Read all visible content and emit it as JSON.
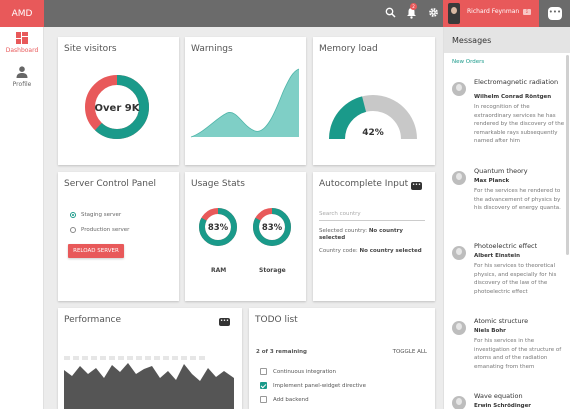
{
  "app": {
    "brand": "AMD"
  },
  "topbar": {
    "notification_count": "2",
    "user": {
      "name": "Richard Feynman",
      "badge": "Σ"
    },
    "icons": [
      "search-icon",
      "bell-icon",
      "gear-icon",
      "chat-icon"
    ]
  },
  "nav": [
    {
      "label": "Dashboard",
      "icon": "dashboard-icon",
      "active": true
    },
    {
      "label": "Profile",
      "icon": "person-icon",
      "active": false
    }
  ],
  "colors": {
    "accent": "#e8595a",
    "teal": "#1a9a8a",
    "topbar": "#6b6b6b",
    "gray": "#c8c8c8"
  },
  "cards": {
    "site_visitors": {
      "title": "Site visitors",
      "center_label": "Over 9K",
      "teal_fraction": 0.62
    },
    "warnings": {
      "title": "Warnings"
    },
    "memory_load": {
      "title": "Memory load",
      "value_label": "42%",
      "value_fraction": 0.42
    },
    "server_control": {
      "title": "Server Control Panel",
      "options": [
        {
          "label": "Staging server",
          "selected": true
        },
        {
          "label": "Production server",
          "selected": false
        }
      ],
      "reload_label": "RELOAD SERVER"
    },
    "usage_stats": {
      "title": "Usage Stats",
      "gauges": [
        {
          "label": "RAM",
          "value_label": "83%",
          "value_fraction": 0.83
        },
        {
          "label": "Storage",
          "value_label": "83%",
          "value_fraction": 0.83
        }
      ]
    },
    "autocomplete": {
      "title": "Autocomplete Input",
      "placeholder": "Search country",
      "selected_country_label": "Selected country:",
      "selected_country_value": "No country selected",
      "country_code_label": "Country code:",
      "country_code_value": "No country selected"
    },
    "performance": {
      "title": "Performance"
    },
    "todo": {
      "title": "TODO list",
      "remaining": "2 of 3 remaining",
      "toggle_label": "TOGGLE ALL",
      "items": [
        {
          "label": "Continuous integration",
          "done": false
        },
        {
          "label": "Implement panel-widget directive",
          "done": true
        },
        {
          "label": "Add backend",
          "done": false
        }
      ]
    }
  },
  "messages": {
    "title": "Messages",
    "section": "New Orders",
    "items": [
      {
        "title": "Electromagnetic radiation",
        "author": "Wilhelm Conrad Röntgen",
        "body": "In recognition of the extraordinary services he has rendered by the discovery of the remarkable rays subsequently named after him"
      },
      {
        "title": "Quantum theory",
        "author": "Max Planck",
        "body": "For the services he rendered to the advancement of physics by his discovery of energy quanta."
      },
      {
        "title": "Photoelectric effect",
        "author": "Albert Einstein",
        "body": "For his services to theoretical physics, and especially for his discovery of the law of the photoelectric effect"
      },
      {
        "title": "Atomic structure",
        "author": "Niels Bohr",
        "body": "For his services in the investigation of the structure of atoms and of the radiation emanating from them"
      },
      {
        "title": "Wave equation",
        "author": "Erwin Schrödinger",
        "body": ""
      }
    ]
  }
}
